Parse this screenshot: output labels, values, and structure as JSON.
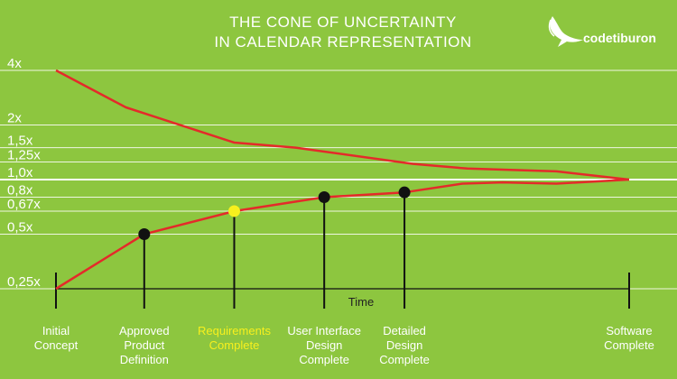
{
  "brand": {
    "name": "codetiburon",
    "logo_icon": "shark-icon"
  },
  "chart_data": {
    "type": "line",
    "title": [
      "THE CONE OF UNCERTAINTY",
      "IN CALENDAR REPRESENTATION"
    ],
    "xlabel": "Time",
    "ylabel": "",
    "y_scale": "log2",
    "yticks": [
      {
        "value": 4,
        "label": "4x"
      },
      {
        "value": 2,
        "label": "2x"
      },
      {
        "value": 1.5,
        "label": "1,5x"
      },
      {
        "value": 1.25,
        "label": "1,25x"
      },
      {
        "value": 1.0,
        "label": "1,0x"
      },
      {
        "value": 0.8,
        "label": "0,8x"
      },
      {
        "value": 0.67,
        "label": "0,67x"
      },
      {
        "value": 0.5,
        "label": "0,5x"
      },
      {
        "value": 0.25,
        "label": "0,25x"
      }
    ],
    "ylim": [
      0.25,
      4
    ],
    "grid": true,
    "milestones": [
      {
        "label": [
          "Initial",
          "Concept"
        ],
        "x": 0,
        "highlight": false,
        "marker": false
      },
      {
        "label": [
          "Approved",
          "Product",
          "Definition"
        ],
        "x": 0.154,
        "highlight": false,
        "marker": true,
        "y": 0.5
      },
      {
        "label": [
          "Requirements",
          "Complete"
        ],
        "x": 0.311,
        "highlight": true,
        "marker": true,
        "y": 0.67
      },
      {
        "label": [
          "User Interface",
          "Design",
          "Complete"
        ],
        "x": 0.468,
        "highlight": false,
        "marker": true,
        "y": 0.8
      },
      {
        "label": [
          "Detailed",
          "Design",
          "Complete"
        ],
        "x": 0.608,
        "highlight": false,
        "marker": true,
        "y": 0.85
      },
      {
        "label": [
          "Software",
          "Complete"
        ],
        "x": 1,
        "highlight": false,
        "marker": false
      }
    ],
    "series": [
      {
        "line": "upper",
        "color": "#e42a2a",
        "points": [
          [
            0,
            4
          ],
          [
            0.122,
            2.5
          ],
          [
            0.311,
            1.6
          ],
          [
            0.418,
            1.5
          ],
          [
            0.623,
            1.22
          ],
          [
            0.718,
            1.15
          ],
          [
            0.873,
            1.11
          ],
          [
            1,
            1.0
          ]
        ]
      },
      {
        "line": "lower",
        "color": "#e42a2a",
        "points": [
          [
            0,
            0.25
          ],
          [
            0.154,
            0.5
          ],
          [
            0.311,
            0.67
          ],
          [
            0.468,
            0.8
          ],
          [
            0.608,
            0.85
          ],
          [
            0.709,
            0.95
          ],
          [
            0.779,
            0.965
          ],
          [
            0.873,
            0.95
          ],
          [
            1,
            1.0
          ]
        ]
      }
    ],
    "marker_colors": {
      "default": "#111111",
      "highlight": "#f7f01d"
    },
    "line_color": "#e42a2a"
  }
}
